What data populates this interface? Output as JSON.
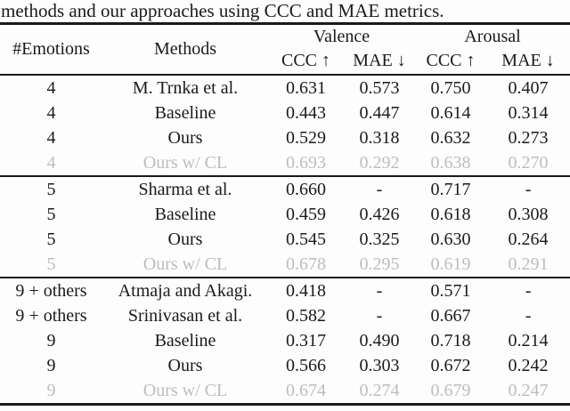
{
  "caption": "methods and our approaches using CCC and MAE metrics.",
  "table": {
    "col_headers": {
      "emotions": "#Emotions",
      "methods": "Methods",
      "valence": "Valence",
      "arousal": "Arousal",
      "ccc": "CCC ↑",
      "mae": "MAE ↓"
    },
    "sections": [
      {
        "rows": [
          {
            "emotions": "4",
            "method": "M. Trnka et al.",
            "values": [
              "0.631",
              "0.573",
              "0.750",
              "0.407"
            ],
            "muted": false
          },
          {
            "emotions": "4",
            "method": "Baseline",
            "values": [
              "0.443",
              "0.447",
              "0.614",
              "0.314"
            ],
            "muted": false
          },
          {
            "emotions": "4",
            "method": "Ours",
            "values": [
              "0.529",
              "0.318",
              "0.632",
              "0.273"
            ],
            "muted": false
          },
          {
            "emotions": "4",
            "method": "Ours w/ CL",
            "values": [
              "0.693",
              "0.292",
              "0.638",
              "0.270"
            ],
            "muted": true
          }
        ]
      },
      {
        "rows": [
          {
            "emotions": "5",
            "method": "Sharma et al.",
            "values": [
              "0.660",
              "-",
              "0.717",
              "-"
            ],
            "muted": false
          },
          {
            "emotions": "5",
            "method": "Baseline",
            "values": [
              "0.459",
              "0.426",
              "0.618",
              "0.308"
            ],
            "muted": false
          },
          {
            "emotions": "5",
            "method": "Ours",
            "values": [
              "0.545",
              "0.325",
              "0.630",
              "0.264"
            ],
            "muted": false
          },
          {
            "emotions": "5",
            "method": "Ours w/ CL",
            "values": [
              "0.678",
              "0.295",
              "0.619",
              "0.291"
            ],
            "muted": true
          }
        ]
      },
      {
        "rows": [
          {
            "emotions": "9 + others",
            "method": "Atmaja and Akagi.",
            "values": [
              "0.418",
              "-",
              "0.571",
              "-"
            ],
            "muted": false
          },
          {
            "emotions": "9 + others",
            "method": "Srinivasan et al.",
            "values": [
              "0.582",
              "-",
              "0.667",
              "-"
            ],
            "muted": false
          },
          {
            "emotions": "9",
            "method": "Baseline",
            "values": [
              "0.317",
              "0.490",
              "0.718",
              "0.214"
            ],
            "muted": false
          },
          {
            "emotions": "9",
            "method": "Ours",
            "values": [
              "0.566",
              "0.303",
              "0.672",
              "0.242"
            ],
            "muted": false
          },
          {
            "emotions": "9",
            "method": "Ours w/ CL",
            "values": [
              "0.674",
              "0.274",
              "0.679",
              "0.247"
            ],
            "muted": true
          }
        ]
      }
    ]
  },
  "colors": {
    "text": "#1a1a1a",
    "muted": "#bdbdbd",
    "rule": "#1a1a1a",
    "background": "#fdfdfd"
  }
}
